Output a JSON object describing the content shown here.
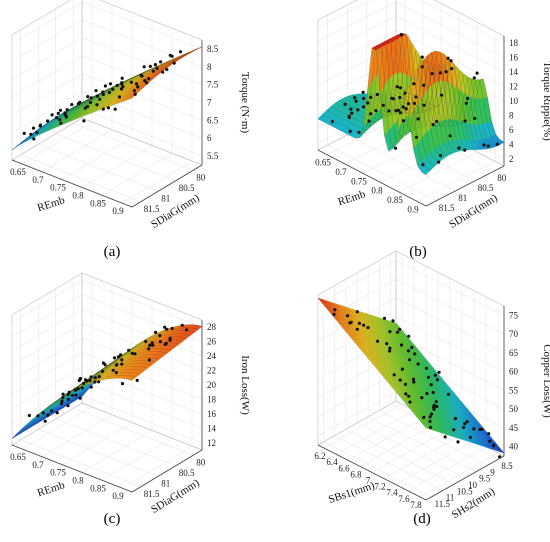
{
  "chart_data": [
    {
      "type": "surface3d",
      "panel": "(a)",
      "caption": "(a)",
      "xlabel": "REmb",
      "ylabel": "SDiaG(mm)",
      "zlabel": "Torque (N·m)",
      "x_ticks": [
        "0.65",
        "0.7",
        "0.75",
        "0.8",
        "0.85",
        "0.9"
      ],
      "y_ticks": [
        "81.5",
        "81",
        "80.5",
        "80"
      ],
      "z_ticks": [
        "5.5",
        "6",
        "6.5",
        "7",
        "7.5",
        "8",
        "8.5"
      ],
      "zlim": [
        5.2,
        8.8
      ],
      "surface_shape": "monotonic rise with REmb",
      "grid": true
    },
    {
      "type": "surface3d",
      "panel": "(b)",
      "caption": "(b)",
      "xlabel": "REmb",
      "ylabel": "SDiaG(mm)",
      "zlabel": "Torque Ripple(%)",
      "x_ticks": [
        "0.65",
        "0.7",
        "0.75",
        "0.8",
        "0.85",
        "0.9"
      ],
      "y_ticks": [
        "81.5",
        "81",
        "80.5",
        "80"
      ],
      "z_ticks": [
        "2",
        "4",
        "6",
        "8",
        "10",
        "12",
        "14",
        "16",
        "18"
      ],
      "zlim": [
        0,
        18.5
      ],
      "surface_shape": "two ridges with sharp peaks near 18% and 15%",
      "grid": true
    },
    {
      "type": "surface3d",
      "panel": "(c)",
      "caption": "(c)",
      "xlabel": "REmb",
      "ylabel": "SDiaG(mm)",
      "zlabel": "Iron Loss(W)",
      "x_ticks": [
        "0.65",
        "0.7",
        "0.75",
        "0.8",
        "0.85",
        "0.9"
      ],
      "y_ticks": [
        "81.5",
        "81",
        "80.5",
        "80"
      ],
      "z_ticks": [
        "12",
        "14",
        "16",
        "18",
        "20",
        "22",
        "24",
        "26",
        "28"
      ],
      "zlim": [
        10,
        29
      ],
      "surface_shape": "monotonic rise with REmb",
      "grid": true
    },
    {
      "type": "surface3d",
      "panel": "(d)",
      "caption": "(d)",
      "xlabel": "SBs1(mm)",
      "ylabel": "SHs2(mm)",
      "zlabel": "Copper Loss(W)",
      "x_ticks": [
        "6.2",
        "6.4",
        "6.6",
        "6.8",
        "7",
        "7.2",
        "7.4",
        "7.6",
        "7.8"
      ],
      "y_ticks": [
        "11.5",
        "11",
        "10.5",
        "10",
        "9.5",
        "9",
        "8.5"
      ],
      "z_ticks": [
        "40",
        "45",
        "50",
        "55",
        "60",
        "65",
        "70",
        "75"
      ],
      "zlim": [
        38,
        80
      ],
      "surface_shape": "planar, highest at low SBs1 / low SHs2",
      "grid": true
    }
  ],
  "colormap": [
    "#1f2fa8",
    "#1a6fd6",
    "#19b3c7",
    "#2bbf64",
    "#5fc12f",
    "#a8c82a",
    "#e3b81f",
    "#ec7a1a",
    "#d8261a"
  ]
}
